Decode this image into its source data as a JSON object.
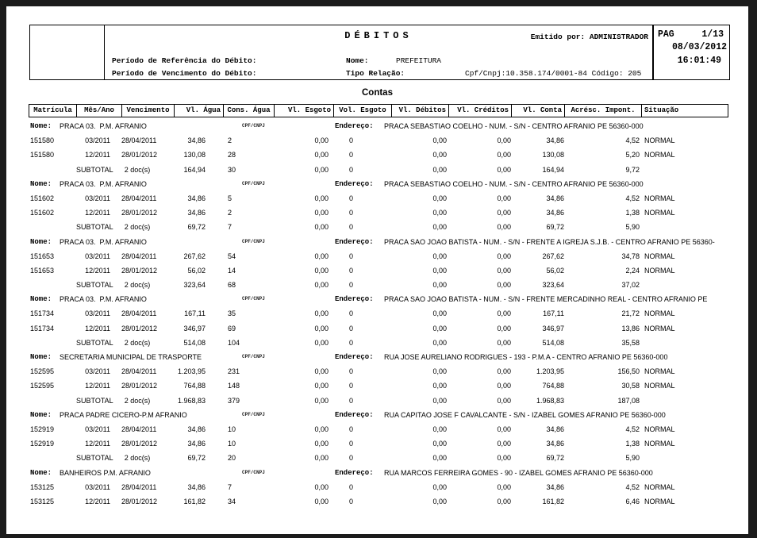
{
  "header": {
    "title": "DÉBITOS",
    "emitted_by": "Emitido por: ADMINISTRADOR",
    "ref_period_label": "Período de Referência do Débito:",
    "due_period_label": "Período de Vencimento do Débito:",
    "name_label": "Nome:",
    "name_value": "PREFEITURA",
    "relation_label": "Tipo Relação:",
    "cpf_cnpj_line": "Cpf/Cnpj:10.358.174/0001-84 Código: 205",
    "page_label": "PAG",
    "page_value": "1/13",
    "date": "08/03/2012",
    "time": "16:01:49"
  },
  "section_title": "Contas",
  "table": {
    "columns": [
      "Matrícula",
      "Mês/Ano",
      "Vencimento",
      "Vl. Água",
      "Cons. Água",
      "Vl. Esgoto",
      "Vol. Esgoto",
      "Vl. Débitos",
      "Vl. Créditos",
      "Vl. Conta",
      "Acrésc. Impont.",
      "Situação"
    ],
    "labels": {
      "nome": "Nome:",
      "cpf": "CPF/CNPJ",
      "endereco": "Endereço:"
    },
    "groups": [
      {
        "nome": "PRACA 03.  P.M. AFRANIO",
        "endereco": "PRACA SEBASTIAO COELHO - NUM. - S/N - CENTRO AFRANIO PE 56360-000",
        "rows": [
          [
            "151580",
            "03/2011",
            "28/04/2011",
            "34,86",
            "2",
            "0,00",
            "0",
            "0,00",
            "0,00",
            "34,86",
            "4,52",
            "NORMAL"
          ],
          [
            "151580",
            "12/2011",
            "28/01/2012",
            "130,08",
            "28",
            "0,00",
            "0",
            "0,00",
            "0,00",
            "130,08",
            "5,20",
            "NORMAL"
          ]
        ],
        "subtotal": [
          "",
          "SUBTOTAL",
          "2 doc(s)",
          "164,94",
          "30",
          "0,00",
          "0",
          "0,00",
          "0,00",
          "164,94",
          "9,72",
          ""
        ]
      },
      {
        "nome": "PRACA 03.  P.M. AFRANIO",
        "endereco": "PRACA SEBASTIAO COELHO - NUM. - S/N - CENTRO AFRANIO PE 56360-000",
        "rows": [
          [
            "151602",
            "03/2011",
            "28/04/2011",
            "34,86",
            "5",
            "0,00",
            "0",
            "0,00",
            "0,00",
            "34,86",
            "4,52",
            "NORMAL"
          ],
          [
            "151602",
            "12/2011",
            "28/01/2012",
            "34,86",
            "2",
            "0,00",
            "0",
            "0,00",
            "0,00",
            "34,86",
            "1,38",
            "NORMAL"
          ]
        ],
        "subtotal": [
          "",
          "SUBTOTAL",
          "2 doc(s)",
          "69,72",
          "7",
          "0,00",
          "0",
          "0,00",
          "0,00",
          "69,72",
          "5,90",
          ""
        ]
      },
      {
        "nome": "PRACA 03.  P.M. AFRANIO",
        "endereco": "PRACA SAO JOAO BATISTA - NUM. - S/N - FRENTE A IGREJA S.J.B. - CENTRO AFRANIO PE 56360-",
        "rows": [
          [
            "151653",
            "03/2011",
            "28/04/2011",
            "267,62",
            "54",
            "0,00",
            "0",
            "0,00",
            "0,00",
            "267,62",
            "34,78",
            "NORMAL"
          ],
          [
            "151653",
            "12/2011",
            "28/01/2012",
            "56,02",
            "14",
            "0,00",
            "0",
            "0,00",
            "0,00",
            "56,02",
            "2,24",
            "NORMAL"
          ]
        ],
        "subtotal": [
          "",
          "SUBTOTAL",
          "2 doc(s)",
          "323,64",
          "68",
          "0,00",
          "0",
          "0,00",
          "0,00",
          "323,64",
          "37,02",
          ""
        ]
      },
      {
        "nome": "PRACA 03.  P.M. AFRANIO",
        "endereco": "PRACA SAO JOAO BATISTA - NUM. - S/N - FRENTE MERCADINHO REAL - CENTRO AFRANIO PE",
        "rows": [
          [
            "151734",
            "03/2011",
            "28/04/2011",
            "167,11",
            "35",
            "0,00",
            "0",
            "0,00",
            "0,00",
            "167,11",
            "21,72",
            "NORMAL"
          ],
          [
            "151734",
            "12/2011",
            "28/01/2012",
            "346,97",
            "69",
            "0,00",
            "0",
            "0,00",
            "0,00",
            "346,97",
            "13,86",
            "NORMAL"
          ]
        ],
        "subtotal": [
          "",
          "SUBTOTAL",
          "2 doc(s)",
          "514,08",
          "104",
          "0,00",
          "0",
          "0,00",
          "0,00",
          "514,08",
          "35,58",
          ""
        ]
      },
      {
        "nome": "SECRETARIA MUNICIPAL DE TRASPORTE",
        "endereco": "RUA JOSE AURELIANO RODRIGUES - 193 - P.M.A - CENTRO AFRANIO PE 56360-000",
        "rows": [
          [
            "152595",
            "03/2011",
            "28/04/2011",
            "1.203,95",
            "231",
            "0,00",
            "0",
            "0,00",
            "0,00",
            "1.203,95",
            "156,50",
            "NORMAL"
          ],
          [
            "152595",
            "12/2011",
            "28/01/2012",
            "764,88",
            "148",
            "0,00",
            "0",
            "0,00",
            "0,00",
            "764,88",
            "30,58",
            "NORMAL"
          ]
        ],
        "subtotal": [
          "",
          "SUBTOTAL",
          "2 doc(s)",
          "1.968,83",
          "379",
          "0,00",
          "0",
          "0,00",
          "0,00",
          "1.968,83",
          "187,08",
          ""
        ]
      },
      {
        "nome": "PRACA PADRE CICERO-P.M AFRANIO",
        "endereco": "RUA CAPITAO JOSE F CAVALCANTE - S/N - IZABEL GOMES AFRANIO PE 56360-000",
        "rows": [
          [
            "152919",
            "03/2011",
            "28/04/2011",
            "34,86",
            "10",
            "0,00",
            "0",
            "0,00",
            "0,00",
            "34,86",
            "4,52",
            "NORMAL"
          ],
          [
            "152919",
            "12/2011",
            "28/01/2012",
            "34,86",
            "10",
            "0,00",
            "0",
            "0,00",
            "0,00",
            "34,86",
            "1,38",
            "NORMAL"
          ]
        ],
        "subtotal": [
          "",
          "SUBTOTAL",
          "2 doc(s)",
          "69,72",
          "20",
          "0,00",
          "0",
          "0,00",
          "0,00",
          "69,72",
          "5,90",
          ""
        ]
      },
      {
        "nome": "BANHEIROS P.M. AFRANIO",
        "endereco": "RUA MARCOS FERREIRA GOMES - 90 - IZABEL GOMES AFRANIO PE 56360-000",
        "rows": [
          [
            "153125",
            "03/2011",
            "28/04/2011",
            "34,86",
            "7",
            "0,00",
            "0",
            "0,00",
            "0,00",
            "34,86",
            "4,52",
            "NORMAL"
          ],
          [
            "153125",
            "12/2011",
            "28/01/2012",
            "161,82",
            "34",
            "0,00",
            "0",
            "0,00",
            "0,00",
            "161,82",
            "6,46",
            "NORMAL"
          ]
        ],
        "subtotal": null
      }
    ]
  }
}
